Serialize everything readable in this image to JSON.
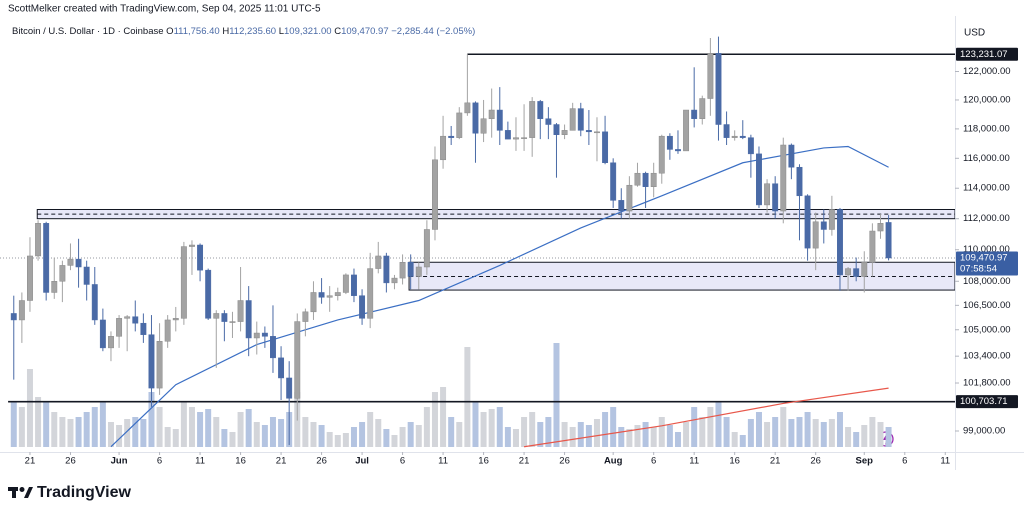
{
  "chart_data": {
    "type": "candlestick",
    "attribution": "ScottMelker created with TradingView.com, Sep 04, 2025 11:01 UTC-5",
    "symbol": "Bitcoin / U.S. Dollar · 1D · Coinbase",
    "ohlc_legend": [
      {
        "label": "O",
        "value": "111,756.40"
      },
      {
        "label": "H",
        "value": "112,235.60"
      },
      {
        "label": "L",
        "value": "109,321.00"
      },
      {
        "label": "C",
        "value": "109,470.97"
      }
    ],
    "change": "−2,285.44 (−2.05%)",
    "currency": "USD",
    "brand": "TradingView",
    "up_color": "#a3a3a3",
    "down_color": "#4a6aa6",
    "up_volume_color": "#d3d5da",
    "down_volume_color": "#b4c4e1",
    "log_scale": true,
    "xlim": [
      -1.7,
      116.2
    ],
    "ylim": [
      97800,
      126000
    ],
    "xticks": [
      {
        "value": 2,
        "label": "21"
      },
      {
        "value": 7,
        "label": "26"
      },
      {
        "value": 13,
        "label": "Jun"
      },
      {
        "value": 18,
        "label": "6"
      },
      {
        "value": 23,
        "label": "11"
      },
      {
        "value": 28,
        "label": "16"
      },
      {
        "value": 33,
        "label": "21"
      },
      {
        "value": 38,
        "label": "26"
      },
      {
        "value": 43,
        "label": "Jul"
      },
      {
        "value": 48,
        "label": "6"
      },
      {
        "value": 53,
        "label": "11"
      },
      {
        "value": 58,
        "label": "16"
      },
      {
        "value": 63,
        "label": "21"
      },
      {
        "value": 68,
        "label": "26"
      },
      {
        "value": 74,
        "label": "Aug"
      },
      {
        "value": 79,
        "label": "6"
      },
      {
        "value": 84,
        "label": "11"
      },
      {
        "value": 89,
        "label": "16"
      },
      {
        "value": 94,
        "label": "21"
      },
      {
        "value": 99,
        "label": "26"
      },
      {
        "value": 105,
        "label": "Sep"
      },
      {
        "value": 110,
        "label": "6"
      },
      {
        "value": 115,
        "label": "11"
      }
    ],
    "yticks": [
      {
        "value": 122000,
        "label": "122,000.00"
      },
      {
        "value": 120000,
        "label": "120,000.00"
      },
      {
        "value": 118000,
        "label": "118,000.00"
      },
      {
        "value": 116000,
        "label": "116,000.00"
      },
      {
        "value": 114000,
        "label": "114,000.00"
      },
      {
        "value": 112000,
        "label": "112,000.00"
      },
      {
        "value": 110000,
        "label": "110,000.00"
      },
      {
        "value": 108000,
        "label": "108,000.00"
      },
      {
        "value": 106500,
        "label": "106,500.00"
      },
      {
        "value": 105000,
        "label": "105,000.00"
      },
      {
        "value": 103400,
        "label": "103,400.00"
      },
      {
        "value": 101800,
        "label": "101,800.00"
      },
      {
        "value": 99000,
        "label": "99,000.00"
      }
    ],
    "open": [
      106000,
      105600,
      106800,
      109600,
      111700,
      107300,
      108000,
      109000,
      109400,
      108900,
      107800,
      105600,
      103900,
      104600,
      105700,
      105800,
      105400,
      104700,
      101500,
      104300,
      105600,
      105700,
      110200,
      110300,
      108700,
      105700,
      106000,
      105500,
      105500,
      106800,
      104500,
      104800,
      104600,
      103300,
      102100,
      100900,
      105500,
      106100,
      107300,
      107000,
      107100,
      107300,
      108400,
      107100,
      105700,
      108800,
      109600,
      107900,
      108200,
      109200,
      108300,
      108900,
      111300,
      115900,
      117500,
      117400,
      119100,
      119800,
      117700,
      118700,
      119300,
      117900,
      117300,
      117400,
      117400,
      119900,
      118700,
      118300,
      117600,
      117900,
      119400,
      117900,
      117800,
      117800,
      115700,
      113200,
      112500,
      114200,
      115000,
      114100,
      115000,
      117500,
      116600,
      116500,
      119300,
      118700,
      120100,
      123300,
      118300,
      117400,
      117500,
      117400,
      116300,
      112900,
      114300,
      112500,
      116900,
      115400,
      113500,
      110100,
      111800,
      111300,
      112600,
      108400,
      108800,
      108300,
      109200,
      111200,
      111756.4
    ],
    "high": [
      107100,
      107300,
      110800,
      111900,
      111800,
      109500,
      109300,
      110400,
      110700,
      109300,
      108900,
      106300,
      104900,
      105900,
      105900,
      106800,
      106000,
      105900,
      105400,
      105900,
      106400,
      110500,
      110600,
      110400,
      108800,
      106200,
      106200,
      106100,
      108900,
      107700,
      105500,
      105200,
      106500,
      104000,
      103100,
      106000,
      106300,
      108000,
      108200,
      107700,
      107600,
      108500,
      108800,
      107500,
      109800,
      110500,
      109800,
      108400,
      109700,
      109700,
      109200,
      111900,
      116800,
      118900,
      118200,
      119500,
      123231.07,
      119900,
      120000,
      120800,
      120900,
      118500,
      118800,
      119700,
      120200,
      120000,
      119500,
      118400,
      118300,
      119800,
      119800,
      119300,
      118800,
      118900,
      116000,
      114000,
      114800,
      115700,
      115100,
      115700,
      117600,
      117700,
      117900,
      119300,
      122300,
      120300,
      124400,
      124500,
      119200,
      117900,
      118600,
      117600,
      116800,
      114600,
      114800,
      117400,
      117000,
      115600,
      113600,
      112400,
      112600,
      113500,
      112700,
      108900,
      109500,
      109900,
      111700,
      112300,
      112235.6
    ],
    "low": [
      102000,
      104200,
      106100,
      109300,
      106800,
      106900,
      106700,
      108700,
      107600,
      106800,
      105300,
      103700,
      103100,
      103900,
      103700,
      104900,
      104200,
      100400,
      101100,
      103900,
      104900,
      105300,
      108400,
      108000,
      105600,
      102700,
      104300,
      104500,
      104900,
      103400,
      103500,
      103900,
      102400,
      100800,
      98200,
      99600,
      104600,
      105600,
      106600,
      106100,
      106800,
      107200,
      106700,
      105300,
      105100,
      108500,
      107300,
      107500,
      107800,
      107500,
      107500,
      108400,
      110600,
      115300,
      116900,
      117300,
      118900,
      115700,
      117100,
      117400,
      116900,
      117300,
      116500,
      116500,
      116100,
      117300,
      117300,
      114700,
      117300,
      117900,
      117500,
      116900,
      115800,
      115600,
      112700,
      112000,
      112000,
      114100,
      112700,
      113400,
      114300,
      115900,
      116300,
      116500,
      118100,
      118300,
      118900,
      117200,
      116900,
      117200,
      117300,
      114700,
      112700,
      112400,
      112000,
      111700,
      114600,
      110600,
      109300,
      108700,
      110400,
      110900,
      107400,
      107400,
      108000,
      107300,
      108300,
      110700,
      109321.0
    ],
    "close": [
      105600,
      106800,
      109600,
      111700,
      107300,
      108000,
      109000,
      109400,
      108900,
      107800,
      105600,
      103900,
      104600,
      105700,
      105800,
      105400,
      104700,
      101500,
      104300,
      105600,
      105700,
      110200,
      110300,
      108700,
      105700,
      106000,
      105500,
      105500,
      106800,
      104500,
      104800,
      104600,
      103300,
      102100,
      100900,
      105500,
      106100,
      107300,
      107000,
      107100,
      107300,
      108400,
      107100,
      105700,
      108800,
      109600,
      107900,
      108200,
      109200,
      108300,
      108900,
      111300,
      115900,
      117500,
      117400,
      119100,
      119800,
      117700,
      118700,
      119300,
      117900,
      117300,
      117400,
      117400,
      119900,
      118700,
      118300,
      117600,
      117900,
      119400,
      117900,
      117800,
      117800,
      115700,
      113200,
      112500,
      114200,
      115000,
      114100,
      115000,
      117500,
      116600,
      116500,
      119300,
      118700,
      120100,
      123300,
      118300,
      117400,
      117500,
      117400,
      116300,
      112900,
      114300,
      112500,
      116900,
      115400,
      113500,
      110100,
      111800,
      111300,
      112600,
      108400,
      108800,
      108300,
      109200,
      111200,
      111700,
      109470.97
    ],
    "volume": [
      45,
      40,
      78,
      50,
      45,
      35,
      30,
      28,
      30,
      35,
      40,
      45,
      25,
      22,
      28,
      30,
      28,
      55,
      40,
      20,
      18,
      45,
      40,
      35,
      38,
      30,
      18,
      15,
      35,
      38,
      25,
      22,
      30,
      28,
      35,
      55,
      30,
      25,
      22,
      15,
      12,
      14,
      20,
      25,
      35,
      28,
      18,
      12,
      20,
      25,
      22,
      40,
      55,
      60,
      30,
      25,
      100,
      45,
      35,
      38,
      40,
      20,
      18,
      30,
      35,
      25,
      30,
      104,
      25,
      20,
      25,
      22,
      28,
      35,
      40,
      20,
      18,
      22,
      25,
      20,
      30,
      22,
      15,
      25,
      40,
      30,
      40,
      45,
      30,
      15,
      12,
      28,
      35,
      25,
      30,
      40,
      28,
      30,
      35,
      28,
      25,
      28,
      35,
      20,
      15,
      22,
      30,
      25,
      20
    ],
    "ma_lines": [
      {
        "color": "#3b6fc4",
        "x": [
          12,
          20,
          30,
          40,
          50,
          60,
          70,
          80,
          90,
          100,
          103,
          108
        ],
        "values": [
          98100,
          101700,
          104100,
          105600,
          106800,
          109000,
          111400,
          113500,
          115700,
          116700,
          116800,
          115400
        ]
      },
      {
        "color": "#e8574a",
        "x": [
          63,
          80,
          95,
          108
        ],
        "values": [
          98100,
          99300,
          100600,
          101500
        ]
      }
    ],
    "levels": [
      {
        "value": 123231.07,
        "label": "123,231.07",
        "start": 56
      },
      {
        "value": 100703.71,
        "label": "100,703.71",
        "start": -0.7
      }
    ],
    "zones": [
      {
        "top": 112600,
        "bottom": 112000,
        "mid": 112300,
        "start": 2.9
      },
      {
        "top": 109200,
        "bottom": 107450,
        "mid": 108300,
        "start": 48.8
      }
    ],
    "last_price": {
      "value": 109470.97,
      "label": "109,470.97",
      "countdown": "07:58:54"
    }
  }
}
